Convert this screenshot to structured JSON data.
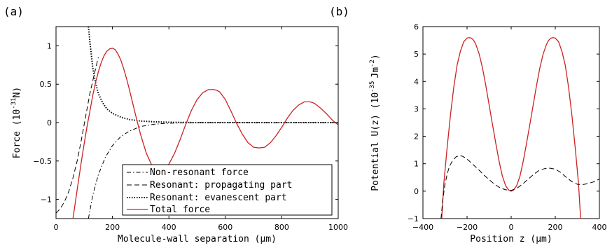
{
  "chart_data": [
    {
      "type": "line",
      "panel_label": "(a)",
      "xlabel": "Molecule-wall separation (μm)",
      "ylabel": "Force (10^-31N)",
      "ylabel_main": "Force (10",
      "ylabel_exp": "-31",
      "ylabel_tail": "N)",
      "xlim": [
        0,
        1000
      ],
      "ylim": [
        -1.25,
        1.25
      ],
      "xticks": [
        0,
        200,
        400,
        600,
        800,
        1000
      ],
      "xtick_labels": [
        "0",
        "200",
        "400",
        "600",
        "800",
        "1000"
      ],
      "yticks": [
        -1,
        -0.5,
        0,
        0.5,
        1
      ],
      "ytick_labels": [
        "−1",
        "−0.5",
        "0",
        "0.5",
        "1"
      ],
      "legend_position": "lower-right",
      "series": [
        {
          "name": "Non-resonant force",
          "style": "dashdot",
          "color": "#000000",
          "x": [
            115,
            130,
            150,
            175,
            200,
            230,
            260,
            300,
            350,
            400,
            500,
            600,
            800,
            1000
          ],
          "y": [
            -1.25,
            -0.95,
            -0.68,
            -0.45,
            -0.3,
            -0.18,
            -0.11,
            -0.05,
            -0.02,
            -0.008,
            0,
            0,
            0,
            0
          ]
        },
        {
          "name": "Resonant: propagating part",
          "style": "dashed",
          "color": "#000000",
          "x": [
            0,
            15,
            30,
            45,
            60,
            75,
            90,
            105,
            120,
            135,
            150
          ],
          "y": [
            -1.18,
            -1.12,
            -1.03,
            -0.9,
            -0.72,
            -0.5,
            -0.22,
            0.08,
            0.38,
            0.62,
            0.85
          ]
        },
        {
          "name": "Resonant: evanescent part",
          "style": "dotted",
          "color": "#000000",
          "x": [
            115,
            120,
            130,
            140,
            150,
            165,
            180,
            200,
            230,
            260,
            300,
            350,
            400,
            500,
            700,
            1000
          ],
          "y": [
            1.25,
            1.05,
            0.72,
            0.52,
            0.38,
            0.26,
            0.18,
            0.12,
            0.07,
            0.04,
            0.02,
            0.01,
            0.005,
            0,
            0,
            0
          ]
        },
        {
          "name": "Total force",
          "style": "solid",
          "color": "#cc2222",
          "x": [
            60,
            70,
            80,
            90,
            100,
            110,
            120,
            130,
            140,
            150,
            160,
            170,
            180,
            190,
            200,
            210,
            220,
            230,
            240,
            250,
            260,
            270,
            280,
            290,
            300,
            320,
            340,
            360,
            380,
            400,
            420,
            440,
            460,
            480,
            500,
            520,
            540,
            560,
            570,
            580,
            600,
            620,
            640,
            660,
            680,
            700,
            720,
            740,
            760,
            780,
            800,
            820,
            840,
            860,
            880,
            900,
            910,
            920,
            940,
            960,
            980,
            1000
          ],
          "y": [
            -1.25,
            -1.0,
            -0.75,
            -0.5,
            -0.27,
            -0.05,
            0.15,
            0.35,
            0.52,
            0.66,
            0.78,
            0.87,
            0.93,
            0.96,
            0.97,
            0.95,
            0.89,
            0.81,
            0.7,
            0.57,
            0.43,
            0.28,
            0.13,
            -0.02,
            -0.16,
            -0.4,
            -0.56,
            -0.63,
            -0.62,
            -0.54,
            -0.4,
            -0.22,
            -0.02,
            0.16,
            0.3,
            0.39,
            0.43,
            0.43,
            0.42,
            0.4,
            0.3,
            0.15,
            -0.01,
            -0.15,
            -0.26,
            -0.32,
            -0.33,
            -0.32,
            -0.26,
            -0.17,
            -0.06,
            0.06,
            0.16,
            0.23,
            0.27,
            0.27,
            0.26,
            0.24,
            0.18,
            0.11,
            0.03,
            -0.03
          ]
        }
      ]
    },
    {
      "type": "line",
      "panel_label": "(b)",
      "xlabel": "Position z (μm)",
      "ylabel_main": "Potential U(z) (10",
      "ylabel_exp": "-35",
      "ylabel_tail": "Jm",
      "ylabel_exp2": "-2",
      "ylabel_end": ")",
      "xlim": [
        -400,
        400
      ],
      "ylim": [
        -1,
        6
      ],
      "xticks": [
        -400,
        -200,
        0,
        200,
        400
      ],
      "xtick_labels": [
        "−400",
        "−200",
        "0",
        "200",
        "400"
      ],
      "yticks": [
        -1,
        0,
        1,
        2,
        3,
        4,
        5,
        6
      ],
      "ytick_labels": [
        "−1",
        "0",
        "1",
        "2",
        "3",
        "4",
        "5",
        "6"
      ],
      "series": [
        {
          "style": "solid",
          "color": "#cc2222",
          "x": [
            -315,
            -305,
            -290,
            -275,
            -260,
            -245,
            -230,
            -215,
            -200,
            -190,
            -180,
            -170,
            -160,
            -145,
            -130,
            -115,
            -100,
            -85,
            -70,
            -55,
            -40,
            -25,
            -10,
            0,
            10,
            25,
            40,
            55,
            70,
            85,
            100,
            115,
            130,
            145,
            160,
            170,
            180,
            190,
            200,
            215,
            230,
            245,
            260,
            275,
            290,
            305,
            315
          ],
          "y": [
            -1,
            0.3,
            1.6,
            2.8,
            3.8,
            4.6,
            5.1,
            5.45,
            5.58,
            5.6,
            5.58,
            5.5,
            5.35,
            5.0,
            4.5,
            3.85,
            3.15,
            2.45,
            1.75,
            1.1,
            0.55,
            0.2,
            0.03,
            0.0,
            0.03,
            0.2,
            0.55,
            1.1,
            1.75,
            2.45,
            3.15,
            3.85,
            4.5,
            5.0,
            5.35,
            5.5,
            5.58,
            5.6,
            5.58,
            5.45,
            5.1,
            4.6,
            3.8,
            2.8,
            1.6,
            0.3,
            -1
          ]
        },
        {
          "style": "dashed",
          "color": "#000000",
          "x": [
            -318,
            -310,
            -300,
            -290,
            -280,
            -265,
            -250,
            -235,
            -220,
            -205,
            -190,
            -170,
            -150,
            -125,
            -100,
            -75,
            -50,
            -25,
            0,
            25,
            50,
            75,
            100,
            125,
            150,
            175,
            200,
            225,
            250,
            275,
            300,
            325,
            350,
            375,
            400
          ],
          "y": [
            -1,
            -0.3,
            0.25,
            0.62,
            0.9,
            1.12,
            1.25,
            1.3,
            1.27,
            1.2,
            1.1,
            0.95,
            0.8,
            0.6,
            0.42,
            0.25,
            0.12,
            0.05,
            0.03,
            0.1,
            0.25,
            0.42,
            0.6,
            0.75,
            0.82,
            0.84,
            0.8,
            0.68,
            0.5,
            0.35,
            0.25,
            0.24,
            0.28,
            0.34,
            0.44
          ]
        }
      ]
    }
  ]
}
